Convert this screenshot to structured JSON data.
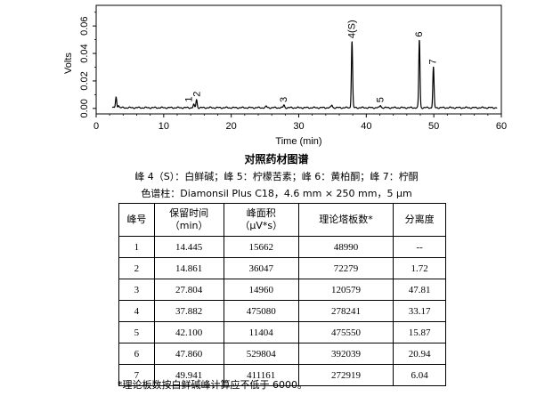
{
  "chart_data": {
    "type": "line",
    "xlabel": "Time (min)",
    "ylabel": "Volts",
    "xlim": [
      0,
      60
    ],
    "ylim": [
      -0.004,
      0.075
    ],
    "xticks": [
      "0",
      "10",
      "20",
      "30",
      "40",
      "50",
      "60"
    ],
    "yticks": [
      "0.00",
      "0.02",
      "0.04",
      "0.06"
    ],
    "grid": false,
    "baseline": 0.0005,
    "peaks": [
      {
        "label": "",
        "t": 2.95,
        "h": 0.0075
      },
      {
        "label": "",
        "t": 3.3,
        "h": 0.002
      },
      {
        "label": "1",
        "t": 14.445,
        "h": 0.0022
      },
      {
        "label": "2",
        "t": 14.861,
        "h": 0.006
      },
      {
        "label": "",
        "t": 25.2,
        "h": 0.001
      },
      {
        "label": "3",
        "t": 27.804,
        "h": 0.002
      },
      {
        "label": "",
        "t": 34.9,
        "h": 0.002
      },
      {
        "label": "4(S)",
        "t": 37.882,
        "h": 0.0485
      },
      {
        "label": "5",
        "t": 42.1,
        "h": 0.0018
      },
      {
        "label": "6",
        "t": 47.86,
        "h": 0.0495
      },
      {
        "label": "7",
        "t": 49.941,
        "h": 0.0295
      }
    ]
  },
  "caption": {
    "title": "对照药材图谱",
    "peaks_line": "峰 4（S）：白鲜碱；峰 5：柠檬苦素；峰 6：黄柏酮；峰 7：柠酮",
    "column_line": "色谱柱：Diamonsil Plus C18，4.6 mm × 250 mm，5 μm"
  },
  "table": {
    "headers": [
      "峰号",
      "保留时间\n（min）",
      "峰面积\n（μV*s）",
      "理论塔板数*",
      "分离度"
    ],
    "rows": [
      [
        "1",
        "14.445",
        "15662",
        "48990",
        "--"
      ],
      [
        "2",
        "14.861",
        "36047",
        "72279",
        "1.72"
      ],
      [
        "3",
        "27.804",
        "14960",
        "120579",
        "47.81"
      ],
      [
        "4",
        "37.882",
        "475080",
        "278241",
        "33.17"
      ],
      [
        "5",
        "42.100",
        "11404",
        "475550",
        "15.87"
      ],
      [
        "6",
        "47.860",
        "529804",
        "392039",
        "20.94"
      ],
      [
        "7",
        "49.941",
        "411161",
        "272919",
        "6.04"
      ]
    ]
  },
  "footnote": "*理论板数按白鲜碱峰计算应不低于 6000。"
}
